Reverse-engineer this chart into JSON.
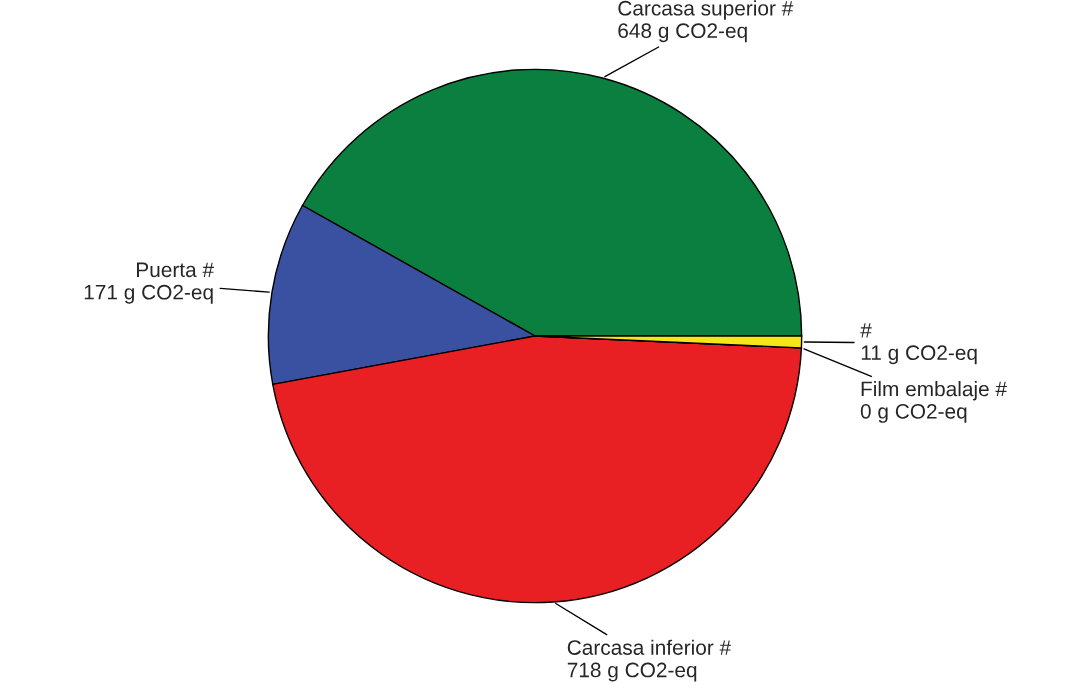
{
  "chart_data": {
    "type": "pie",
    "categories": [
      "Carcasa superior #",
      "Puerta #",
      "Carcasa inferior #",
      "Film embalaje #",
      "#"
    ],
    "values": [
      648,
      171,
      718,
      0,
      11
    ],
    "value_labels": [
      "648 g CO2-eq",
      "171 g CO2-eq",
      "718 g CO2-eq",
      "0 g CO2-eq",
      "11 g CO2-eq"
    ],
    "colors": [
      "#0b7f3f",
      "#3a50a0",
      "#e82024",
      "#000000",
      "#f5e616"
    ]
  }
}
